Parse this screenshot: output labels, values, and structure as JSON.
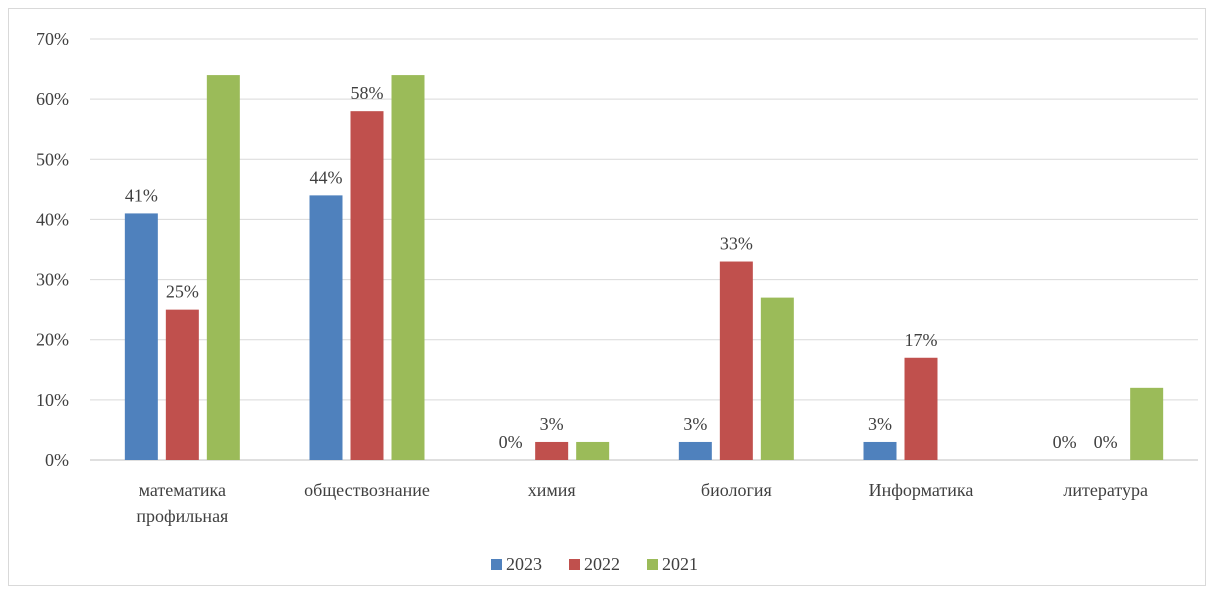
{
  "chart_data": {
    "type": "bar",
    "title": "",
    "xlabel": "",
    "ylabel": "",
    "ylim": [
      0,
      70
    ],
    "yticks": [
      "0%",
      "10%",
      "20%",
      "30%",
      "40%",
      "50%",
      "60%",
      "70%"
    ],
    "ytick_values": [
      0,
      10,
      20,
      30,
      40,
      50,
      60,
      70
    ],
    "grid": true,
    "legend_position": "bottom",
    "categories": [
      [
        "математика",
        "профильная"
      ],
      [
        "обществознание"
      ],
      [
        "химия"
      ],
      [
        "биология"
      ],
      [
        "Информатика"
      ],
      [
        "литература"
      ]
    ],
    "series": [
      {
        "name": "2023",
        "color": "#4f81bd",
        "values": [
          41,
          44,
          0,
          3,
          3,
          0
        ],
        "labels": [
          "41%",
          "44%",
          "0%",
          "3%",
          "3%",
          "0%"
        ]
      },
      {
        "name": "2022",
        "color": "#c0504d",
        "values": [
          25,
          58,
          3,
          33,
          17,
          0
        ],
        "labels": [
          "25%",
          "58%",
          "3%",
          "33%",
          "17%",
          "0%"
        ]
      },
      {
        "name": "2021",
        "color": "#9bbb59",
        "values": [
          64,
          64,
          3,
          27,
          0,
          12
        ],
        "labels": [
          "",
          "",
          "",
          "",
          "",
          ""
        ]
      }
    ]
  }
}
